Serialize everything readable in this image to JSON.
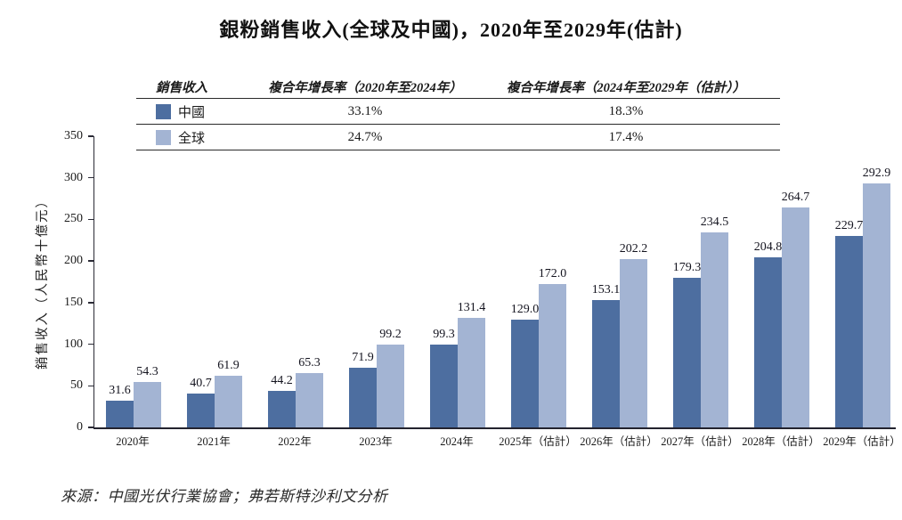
{
  "title": "銀粉銷售收入(全球及中國)，2020年至2029年(估計)",
  "source": "來源：中國光伏行業協會；弗若斯特沙利文分析",
  "colors": {
    "china": "#4D6EA0",
    "global": "#A3B4D3",
    "axis": "#2b2b36"
  },
  "summary_table": {
    "headers": [
      "銷售收入",
      "複合年增長率（2020年至2024年）",
      "複合年增長率（2024年至2029年（估計））"
    ],
    "rows": [
      {
        "label": "中國",
        "cagr_2020_2024": "33.1%",
        "cagr_2024_2029": "18.3%"
      },
      {
        "label": "全球",
        "cagr_2020_2024": "24.7%",
        "cagr_2024_2029": "17.4%"
      }
    ]
  },
  "chart_data": {
    "type": "bar",
    "title": "銀粉銷售收入(全球及中國)，2020年至2029年(估計)",
    "categories": [
      "2020年",
      "2021年",
      "2022年",
      "2023年",
      "2024年",
      "2025年（估計）",
      "2026年（估計）",
      "2027年（估計）",
      "2028年（估計）",
      "2029年（估計）"
    ],
    "series": [
      {
        "name": "中國",
        "color": "#4D6EA0",
        "values": [
          31.6,
          40.7,
          44.2,
          71.9,
          99.3,
          129.0,
          153.1,
          179.3,
          204.8,
          229.7
        ]
      },
      {
        "name": "全球",
        "color": "#A3B4D3",
        "values": [
          54.3,
          61.9,
          65.3,
          99.2,
          131.4,
          172.0,
          202.2,
          234.5,
          264.7,
          292.9
        ]
      }
    ],
    "xlabel": "",
    "ylabel": "銷售收入（人民幣十億元）",
    "ylim": [
      0,
      350
    ],
    "yticks": [
      0,
      50,
      100,
      150,
      200,
      250,
      300,
      350
    ],
    "grid": false,
    "legend_position": "table-top",
    "value_labels": true,
    "value_label_format": "one-decimal"
  }
}
